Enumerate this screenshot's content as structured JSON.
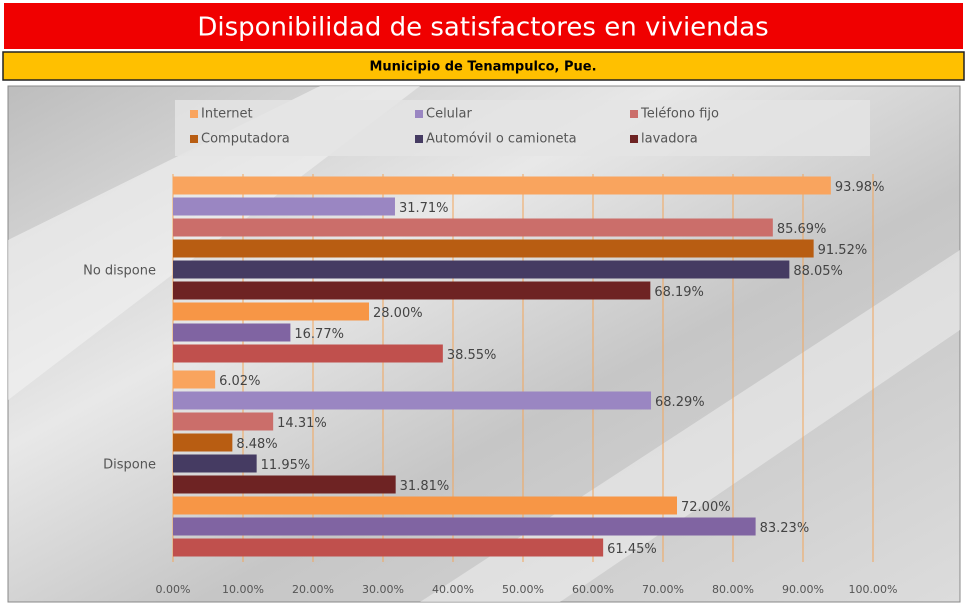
{
  "chart_data": {
    "type": "bar",
    "orientation": "horizontal",
    "title": "Disponibilidad de satisfactores en viviendas",
    "subtitle": "Municipio de Tenampulco, Pue.",
    "categories": [
      "No dispone",
      "Dispone"
    ],
    "series": [
      {
        "name": "Internet",
        "color": "#f9a45e",
        "values": [
          93.98,
          6.02
        ],
        "value_labels": [
          "93.98%",
          "6.02%"
        ]
      },
      {
        "name": "Celular",
        "color": "#9a86c2",
        "values": [
          31.71,
          68.29
        ],
        "value_labels": [
          "31.71%",
          "68.29%"
        ]
      },
      {
        "name": "Teléfono fijo",
        "color": "#cb6e6a",
        "values": [
          85.69,
          14.31
        ],
        "value_labels": [
          "85.69%",
          "14.31%"
        ]
      },
      {
        "name": "Computadora",
        "color": "#b85d12",
        "values": [
          91.52,
          8.48
        ],
        "value_labels": [
          "91.52%",
          "8.48%"
        ]
      },
      {
        "name": "Automóvil o camioneta",
        "color": "#453b62",
        "values": [
          88.05,
          11.95
        ],
        "value_labels": [
          "88.05%",
          "11.95%"
        ]
      },
      {
        "name": "lavadora",
        "color": "#6e2323",
        "values": [
          68.19,
          31.81
        ],
        "value_labels": [
          "68.19%",
          "31.81%"
        ]
      },
      {
        "name": null,
        "color": "#f79646",
        "values": [
          28.0,
          72.0
        ],
        "value_labels": [
          "28.00%",
          "72.00%"
        ]
      },
      {
        "name": null,
        "color": "#8064a2",
        "values": [
          16.77,
          83.23
        ],
        "value_labels": [
          "16.77%",
          "83.23%"
        ]
      },
      {
        "name": null,
        "color": "#c0504d",
        "values": [
          38.55,
          61.45
        ],
        "value_labels": [
          "38.55%",
          "61.45%"
        ]
      }
    ],
    "xlim": [
      0,
      100
    ],
    "xticks": [
      {
        "value": 0,
        "label": "0.00%"
      },
      {
        "value": 10,
        "label": "10.00%"
      },
      {
        "value": 20,
        "label": "20.00%"
      },
      {
        "value": 30,
        "label": "30.00%"
      },
      {
        "value": 40,
        "label": "40.00%"
      },
      {
        "value": 50,
        "label": "50.00%"
      },
      {
        "value": 60,
        "label": "60.00%"
      },
      {
        "value": 70,
        "label": "70.00%"
      },
      {
        "value": 80,
        "label": "80.00%"
      },
      {
        "value": 90,
        "label": "90.00%"
      },
      {
        "value": 100,
        "label": "100.00%"
      }
    ],
    "grid": true,
    "legend": "top"
  }
}
